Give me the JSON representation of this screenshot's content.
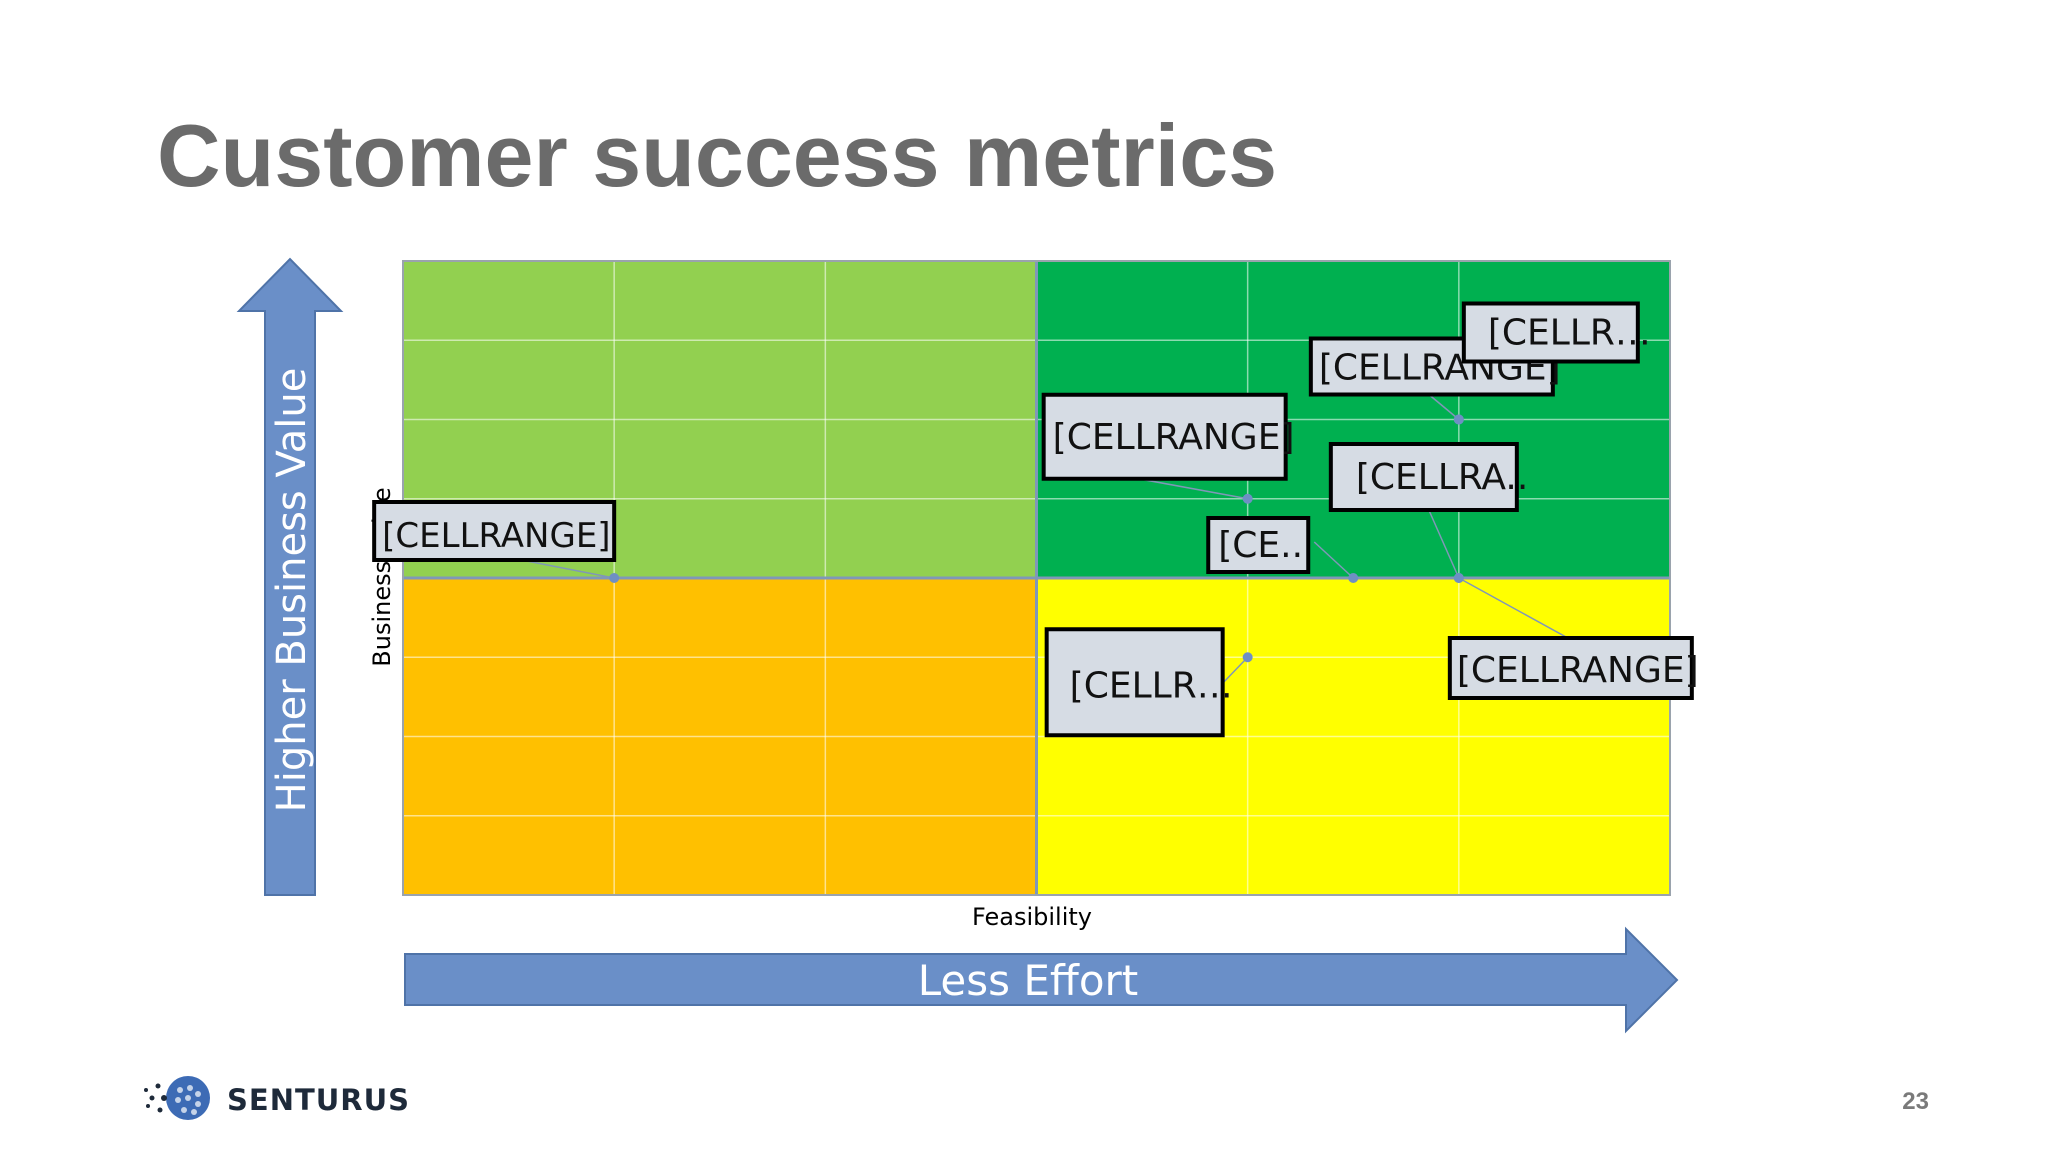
{
  "slide": {
    "title": "Customer success metrics",
    "page_number": "23",
    "logo_text": "SENTURUS",
    "up_arrow_label": "Higher Business Value",
    "right_arrow_label": "Less Effort",
    "colors": {
      "title": "#6b6b6b",
      "arrow": "#6a8fc8",
      "q_top_left": "#92d050",
      "q_top_right": "#00b050",
      "q_bottom_left": "#ffc000",
      "q_bottom_right": "#ffff00",
      "label_fill": "#d6dce4",
      "label_border": "#000000"
    }
  },
  "chart_data": {
    "type": "scatter",
    "xlabel": "Feasibility",
    "ylabel": "Business Value",
    "xlim": [
      0,
      6
    ],
    "ylim": [
      0,
      8
    ],
    "x_divider": 3,
    "y_divider": 4,
    "grid": true,
    "points": [
      {
        "x": 1.0,
        "y": 4.0,
        "label": "[CELLRANGE]"
      },
      {
        "x": 4.0,
        "y": 5.0,
        "label": "[CELLRANGE]"
      },
      {
        "x": 5.0,
        "y": 6.0,
        "label": "[CELLRANGE]"
      },
      {
        "x": 5.0,
        "y": 6.0,
        "label": "[CELLR…"
      },
      {
        "x": 5.0,
        "y": 4.0,
        "label": "[CELLRA.."
      },
      {
        "x": 4.5,
        "y": 4.0,
        "label": "[CE.."
      },
      {
        "x": 5.0,
        "y": 4.0,
        "label": "[CELLRANGE]"
      },
      {
        "x": 4.0,
        "y": 3.0,
        "label": "[CELLR…"
      }
    ]
  }
}
